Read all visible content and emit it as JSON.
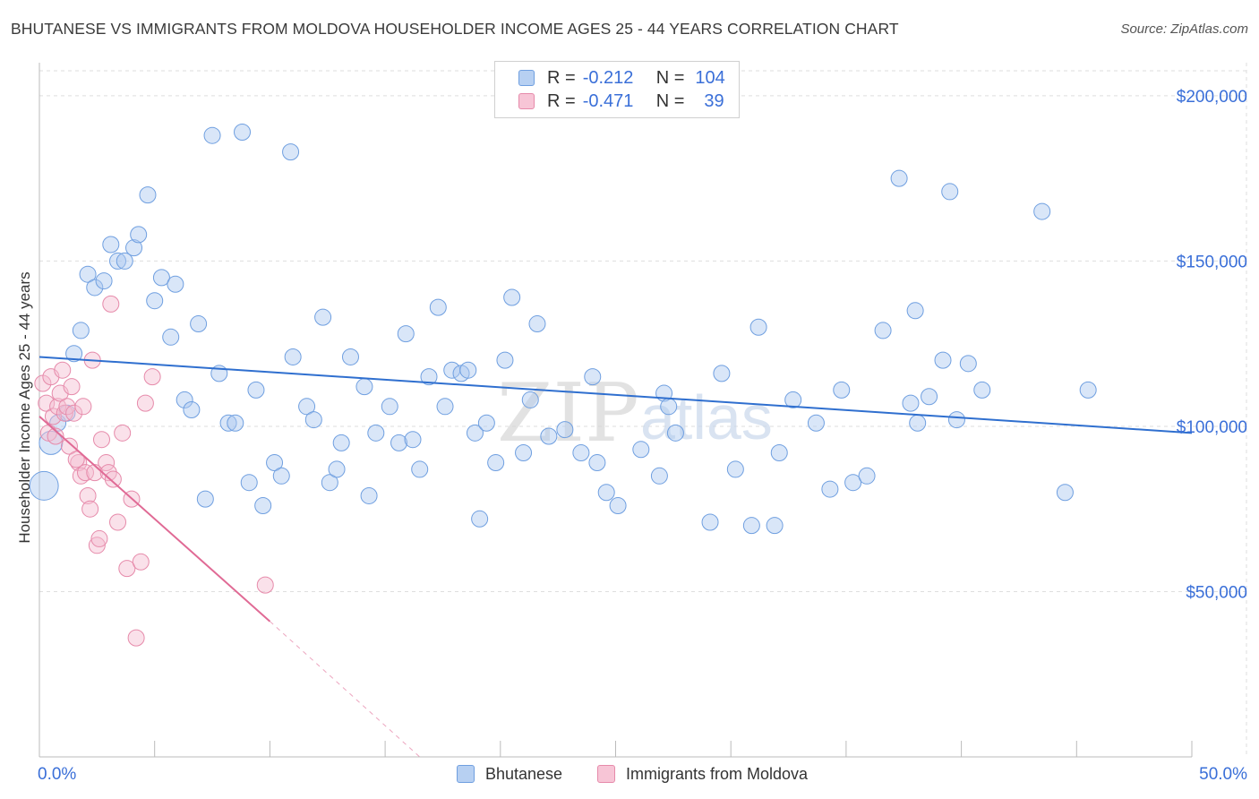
{
  "title": "BHUTANESE VS IMMIGRANTS FROM MOLDOVA HOUSEHOLDER INCOME AGES 25 - 44 YEARS CORRELATION CHART",
  "source": "Source: ZipAtlas.com",
  "watermark": {
    "zip": "ZIP",
    "atlas": "atlas"
  },
  "legend": {
    "r_label": "R =",
    "n_label": "N =",
    "rows": [
      {
        "r": "-0.212",
        "n": "104"
      },
      {
        "r": "-0.471",
        "n": "39"
      }
    ]
  },
  "chart_data": {
    "type": "scatter",
    "title": "BHUTANESE VS IMMIGRANTS FROM MOLDOVA HOUSEHOLDER INCOME AGES 25 - 44 YEARS CORRELATION CHART",
    "xlabel": "",
    "ylabel": "Householder Income Ages 25 - 44 years",
    "xlim": [
      0,
      50
    ],
    "ylim": [
      0,
      210000
    ],
    "x_tick_labels": [
      "0.0%",
      "50.0%"
    ],
    "y_ticks": [
      {
        "value": 50000,
        "label": "$50,000"
      },
      {
        "value": 100000,
        "label": "$100,000"
      },
      {
        "value": 150000,
        "label": "$150,000"
      },
      {
        "value": 200000,
        "label": "$200,000"
      }
    ],
    "series": [
      {
        "name": "Bhutanese",
        "color": "#6f9fe0",
        "fill": "#aac8f0",
        "trend": {
          "x": [
            0,
            50
          ],
          "y": [
            121000,
            98000
          ],
          "color": "#2f6fcf"
        },
        "points": [
          [
            0.2,
            82000,
            16
          ],
          [
            0.5,
            95000,
            13
          ],
          [
            0.8,
            101000,
            9
          ],
          [
            1.2,
            104000,
            9
          ],
          [
            1.5,
            122000,
            9
          ],
          [
            1.8,
            129000,
            9
          ],
          [
            2.1,
            146000,
            9
          ],
          [
            2.4,
            142000,
            9
          ],
          [
            2.8,
            144000,
            9
          ],
          [
            3.1,
            155000,
            9
          ],
          [
            3.4,
            150000,
            9
          ],
          [
            3.7,
            150000,
            9
          ],
          [
            4.1,
            154000,
            9
          ],
          [
            4.3,
            158000,
            9
          ],
          [
            4.7,
            170000,
            9
          ],
          [
            5.0,
            138000,
            9
          ],
          [
            5.3,
            145000,
            9
          ],
          [
            5.7,
            127000,
            9
          ],
          [
            5.9,
            143000,
            9
          ],
          [
            6.3,
            108000,
            9
          ],
          [
            6.6,
            105000,
            9
          ],
          [
            6.9,
            131000,
            9
          ],
          [
            7.2,
            78000,
            9
          ],
          [
            7.5,
            188000,
            9
          ],
          [
            7.8,
            116000,
            9
          ],
          [
            8.2,
            101000,
            9
          ],
          [
            8.5,
            101000,
            9
          ],
          [
            8.8,
            189000,
            9
          ],
          [
            9.1,
            83000,
            9
          ],
          [
            9.4,
            111000,
            9
          ],
          [
            9.7,
            76000,
            9
          ],
          [
            10.2,
            89000,
            9
          ],
          [
            10.5,
            85000,
            9
          ],
          [
            10.9,
            183000,
            9
          ],
          [
            11.0,
            121000,
            9
          ],
          [
            11.6,
            106000,
            9
          ],
          [
            11.9,
            102000,
            9
          ],
          [
            12.3,
            133000,
            9
          ],
          [
            12.6,
            83000,
            9
          ],
          [
            12.9,
            87000,
            9
          ],
          [
            13.1,
            95000,
            9
          ],
          [
            13.5,
            121000,
            9
          ],
          [
            14.1,
            112000,
            9
          ],
          [
            14.3,
            79000,
            9
          ],
          [
            14.6,
            98000,
            9
          ],
          [
            15.2,
            106000,
            9
          ],
          [
            15.6,
            95000,
            9
          ],
          [
            15.9,
            128000,
            9
          ],
          [
            16.2,
            96000,
            9
          ],
          [
            16.5,
            87000,
            9
          ],
          [
            16.9,
            115000,
            9
          ],
          [
            17.3,
            136000,
            9
          ],
          [
            17.6,
            106000,
            9
          ],
          [
            17.9,
            117000,
            9
          ],
          [
            18.3,
            116000,
            9
          ],
          [
            18.6,
            117000,
            9
          ],
          [
            18.9,
            98000,
            9
          ],
          [
            19.1,
            72000,
            9
          ],
          [
            19.4,
            101000,
            9
          ],
          [
            19.8,
            89000,
            9
          ],
          [
            20.2,
            120000,
            9
          ],
          [
            20.5,
            139000,
            9
          ],
          [
            21.0,
            92000,
            9
          ],
          [
            21.3,
            108000,
            9
          ],
          [
            21.6,
            131000,
            9
          ],
          [
            22.1,
            97000,
            9
          ],
          [
            22.8,
            99000,
            9
          ],
          [
            23.5,
            92000,
            9
          ],
          [
            24.0,
            115000,
            9
          ],
          [
            24.2,
            89000,
            9
          ],
          [
            24.6,
            80000,
            9
          ],
          [
            25.1,
            76000,
            9
          ],
          [
            26.1,
            93000,
            9
          ],
          [
            26.9,
            85000,
            9
          ],
          [
            27.1,
            110000,
            9
          ],
          [
            27.3,
            106000,
            9
          ],
          [
            27.6,
            98000,
            9
          ],
          [
            29.1,
            71000,
            9
          ],
          [
            29.6,
            116000,
            9
          ],
          [
            30.2,
            87000,
            9
          ],
          [
            30.9,
            70000,
            9
          ],
          [
            31.2,
            130000,
            9
          ],
          [
            31.9,
            70000,
            9
          ],
          [
            32.1,
            92000,
            9
          ],
          [
            32.7,
            108000,
            9
          ],
          [
            33.7,
            101000,
            9
          ],
          [
            34.3,
            81000,
            9
          ],
          [
            34.8,
            111000,
            9
          ],
          [
            35.3,
            83000,
            9
          ],
          [
            35.9,
            85000,
            9
          ],
          [
            36.6,
            129000,
            9
          ],
          [
            37.3,
            175000,
            9
          ],
          [
            37.8,
            107000,
            9
          ],
          [
            38.1,
            101000,
            9
          ],
          [
            38.6,
            109000,
            9
          ],
          [
            39.2,
            120000,
            9
          ],
          [
            39.5,
            171000,
            9
          ],
          [
            39.8,
            102000,
            9
          ],
          [
            40.3,
            119000,
            9
          ],
          [
            40.9,
            111000,
            9
          ],
          [
            43.5,
            165000,
            9
          ],
          [
            44.5,
            80000,
            9
          ],
          [
            45.5,
            111000,
            9
          ],
          [
            38.0,
            135000,
            9
          ]
        ]
      },
      {
        "name": "Immigrants from Moldova",
        "color": "#e68aaa",
        "fill": "#f5bcd0",
        "trend": {
          "x": [
            0,
            10
          ],
          "y": [
            103000,
            41000
          ],
          "dashed_to": {
            "x": 16.5,
            "y": 0
          },
          "color": "#e06a95"
        },
        "points": [
          [
            0.15,
            113000,
            9
          ],
          [
            0.3,
            107000,
            9
          ],
          [
            0.4,
            98000,
            9
          ],
          [
            0.5,
            115000,
            9
          ],
          [
            0.6,
            103000,
            9
          ],
          [
            0.7,
            97000,
            9
          ],
          [
            0.8,
            106000,
            9
          ],
          [
            0.9,
            110000,
            9
          ],
          [
            1.0,
            117000,
            9
          ],
          [
            1.1,
            104000,
            9
          ],
          [
            1.2,
            106000,
            9
          ],
          [
            1.3,
            94000,
            9
          ],
          [
            1.4,
            112000,
            9
          ],
          [
            1.5,
            104000,
            9
          ],
          [
            1.7,
            89000,
            9
          ],
          [
            1.8,
            85000,
            9
          ],
          [
            1.9,
            106000,
            9
          ],
          [
            2.0,
            86000,
            9
          ],
          [
            2.1,
            79000,
            9
          ],
          [
            2.2,
            75000,
            9
          ],
          [
            2.3,
            120000,
            9
          ],
          [
            2.4,
            86000,
            9
          ],
          [
            2.5,
            64000,
            9
          ],
          [
            2.6,
            66000,
            9
          ],
          [
            2.7,
            96000,
            9
          ],
          [
            2.9,
            89000,
            9
          ],
          [
            3.0,
            86000,
            9
          ],
          [
            3.1,
            137000,
            9
          ],
          [
            3.2,
            84000,
            9
          ],
          [
            3.4,
            71000,
            9
          ],
          [
            3.6,
            98000,
            9
          ],
          [
            3.8,
            57000,
            9
          ],
          [
            4.0,
            78000,
            9
          ],
          [
            4.2,
            36000,
            9
          ],
          [
            4.4,
            59000,
            9
          ],
          [
            4.6,
            107000,
            9
          ],
          [
            4.9,
            115000,
            9
          ],
          [
            9.8,
            52000,
            9
          ],
          [
            1.6,
            90000,
            9
          ]
        ]
      }
    ]
  }
}
